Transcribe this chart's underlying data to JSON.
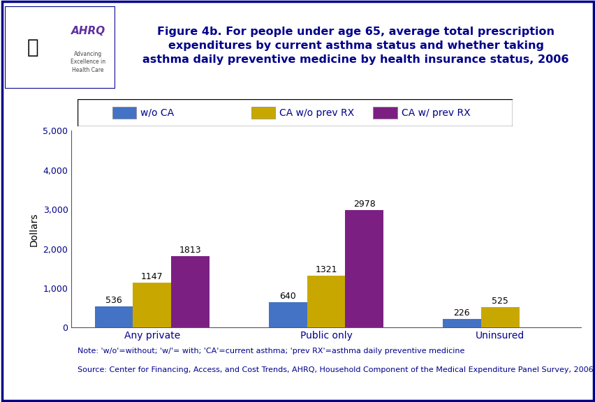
{
  "title": "Figure 4b. For people under age 65, average total prescription\nexpenditures by current asthma status and whether taking\nasthma daily preventive medicine by health insurance status, 2006",
  "title_color": "#00008B",
  "ylabel": "Dollars",
  "ylabel_fontsize": 10,
  "categories": [
    "Any private",
    "Public only",
    "Uninsured"
  ],
  "series": [
    {
      "label": "w/o CA",
      "color": "#4472C4",
      "values": [
        536,
        640,
        226
      ]
    },
    {
      "label": "CA w/o prev RX",
      "color": "#C8A800",
      "values": [
        1147,
        1321,
        525
      ]
    },
    {
      "label": "CA w/ prev RX",
      "color": "#7B2082",
      "values": [
        1813,
        2978,
        0
      ]
    }
  ],
  "ylim": [
    0,
    5000
  ],
  "yticks": [
    0,
    1000,
    2000,
    3000,
    4000,
    5000
  ],
  "ytick_labels": [
    "0",
    "1,000",
    "2,000",
    "3,000",
    "4,000",
    "5,000"
  ],
  "bar_width": 0.22,
  "note_line1": "Note: 'w/o'=without; 'w/'= with; 'CA'=current asthma; 'prev RX'=asthma daily preventive medicine",
  "note_line2": "Source: Center for Financing, Access, and Cost Trends, AHRQ, Household Component of the Medical Expenditure Panel Survey, 2006",
  "bg_color": "#FFFFFF",
  "outer_border_color": "#00008B",
  "separator_color": "#00008B",
  "tick_label_fontsize": 9,
  "title_fontsize": 11.5,
  "cat_label_fontsize": 10,
  "note_fontsize": 8,
  "value_label_fontsize": 9,
  "legend_fontsize": 10
}
